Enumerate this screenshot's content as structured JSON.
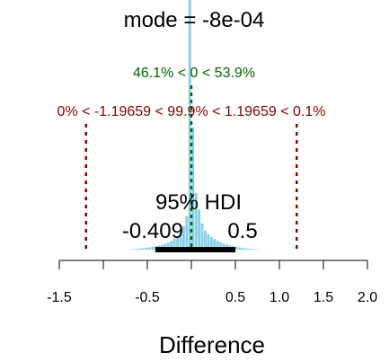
{
  "chart_data": {
    "type": "histogram",
    "xlabel": "Difference",
    "xlim": [
      -1.5,
      2.0
    ],
    "x_ticks": [
      {
        "value": -1.5,
        "label": "-1.5"
      },
      {
        "value": -1.0,
        "label": ""
      },
      {
        "value": -0.5,
        "label": "-0.5"
      },
      {
        "value": 0.0,
        "label": ""
      },
      {
        "value": 0.5,
        "label": "0.5"
      },
      {
        "value": 1.0,
        "label": "1.0"
      },
      {
        "value": 1.5,
        "label": "1.5"
      },
      {
        "value": 2.0,
        "label": "2.0"
      }
    ],
    "mode_text": "mode = -8e-04",
    "comparison_value": 0,
    "comparison_text": "46.1% < 0 < 53.9%",
    "rope_low": -1.19659,
    "rope_high": 1.19659,
    "rope_text": "0% < -1.19659 < 99.9% < 1.19659 < 0.1%",
    "hdi_mass_text": "95% HDI",
    "hdi_low": -0.409,
    "hdi_high": 0.5,
    "hdi_low_label": "-0.409",
    "hdi_high_label": "0.5",
    "bin_width": 0.035,
    "bins": [
      {
        "x": -0.6825,
        "density": 0.012
      },
      {
        "x": -0.6475,
        "density": 0.016
      },
      {
        "x": -0.6125,
        "density": 0.022
      },
      {
        "x": -0.5775,
        "density": 0.028
      },
      {
        "x": -0.5425,
        "density": 0.036
      },
      {
        "x": -0.5075,
        "density": 0.045
      },
      {
        "x": -0.4725,
        "density": 0.055
      },
      {
        "x": -0.4375,
        "density": 0.068
      },
      {
        "x": -0.4025,
        "density": 0.082
      },
      {
        "x": -0.3675,
        "density": 0.098
      },
      {
        "x": -0.3325,
        "density": 0.115
      },
      {
        "x": -0.2975,
        "density": 0.14
      },
      {
        "x": -0.2625,
        "density": 0.17
      },
      {
        "x": -0.2275,
        "density": 0.21
      },
      {
        "x": -0.1925,
        "density": 0.26
      },
      {
        "x": -0.1575,
        "density": 0.32
      },
      {
        "x": -0.1225,
        "density": 0.41
      },
      {
        "x": -0.0875,
        "density": 0.56
      },
      {
        "x": -0.0525,
        "density": 0.8
      },
      {
        "x": -0.0175,
        "density": 6.0
      },
      {
        "x": 0.0175,
        "density": 2.9
      },
      {
        "x": 0.0525,
        "density": 1.35
      },
      {
        "x": 0.0875,
        "density": 0.95
      },
      {
        "x": 0.1225,
        "density": 0.62
      },
      {
        "x": 0.1575,
        "density": 0.45
      },
      {
        "x": 0.1925,
        "density": 0.36
      },
      {
        "x": 0.2275,
        "density": 0.3
      },
      {
        "x": 0.2625,
        "density": 0.25
      },
      {
        "x": 0.2975,
        "density": 0.21
      },
      {
        "x": 0.3325,
        "density": 0.175
      },
      {
        "x": 0.3675,
        "density": 0.145
      },
      {
        "x": 0.4025,
        "density": 0.12
      },
      {
        "x": 0.4375,
        "density": 0.1
      },
      {
        "x": 0.4725,
        "density": 0.083
      },
      {
        "x": 0.5075,
        "density": 0.068
      },
      {
        "x": 0.5425,
        "density": 0.055
      },
      {
        "x": 0.5775,
        "density": 0.044
      },
      {
        "x": 0.6125,
        "density": 0.035
      },
      {
        "x": 0.6475,
        "density": 0.027
      },
      {
        "x": 0.6825,
        "density": 0.02
      },
      {
        "x": 0.7175,
        "density": 0.015
      },
      {
        "x": 0.7525,
        "density": 0.011
      }
    ],
    "colors": {
      "bars": "#87ceeb",
      "comparison": "#006400",
      "rope": "#8b0000",
      "hdi": "#000000",
      "text": "#000000",
      "axis": "#000000"
    }
  }
}
